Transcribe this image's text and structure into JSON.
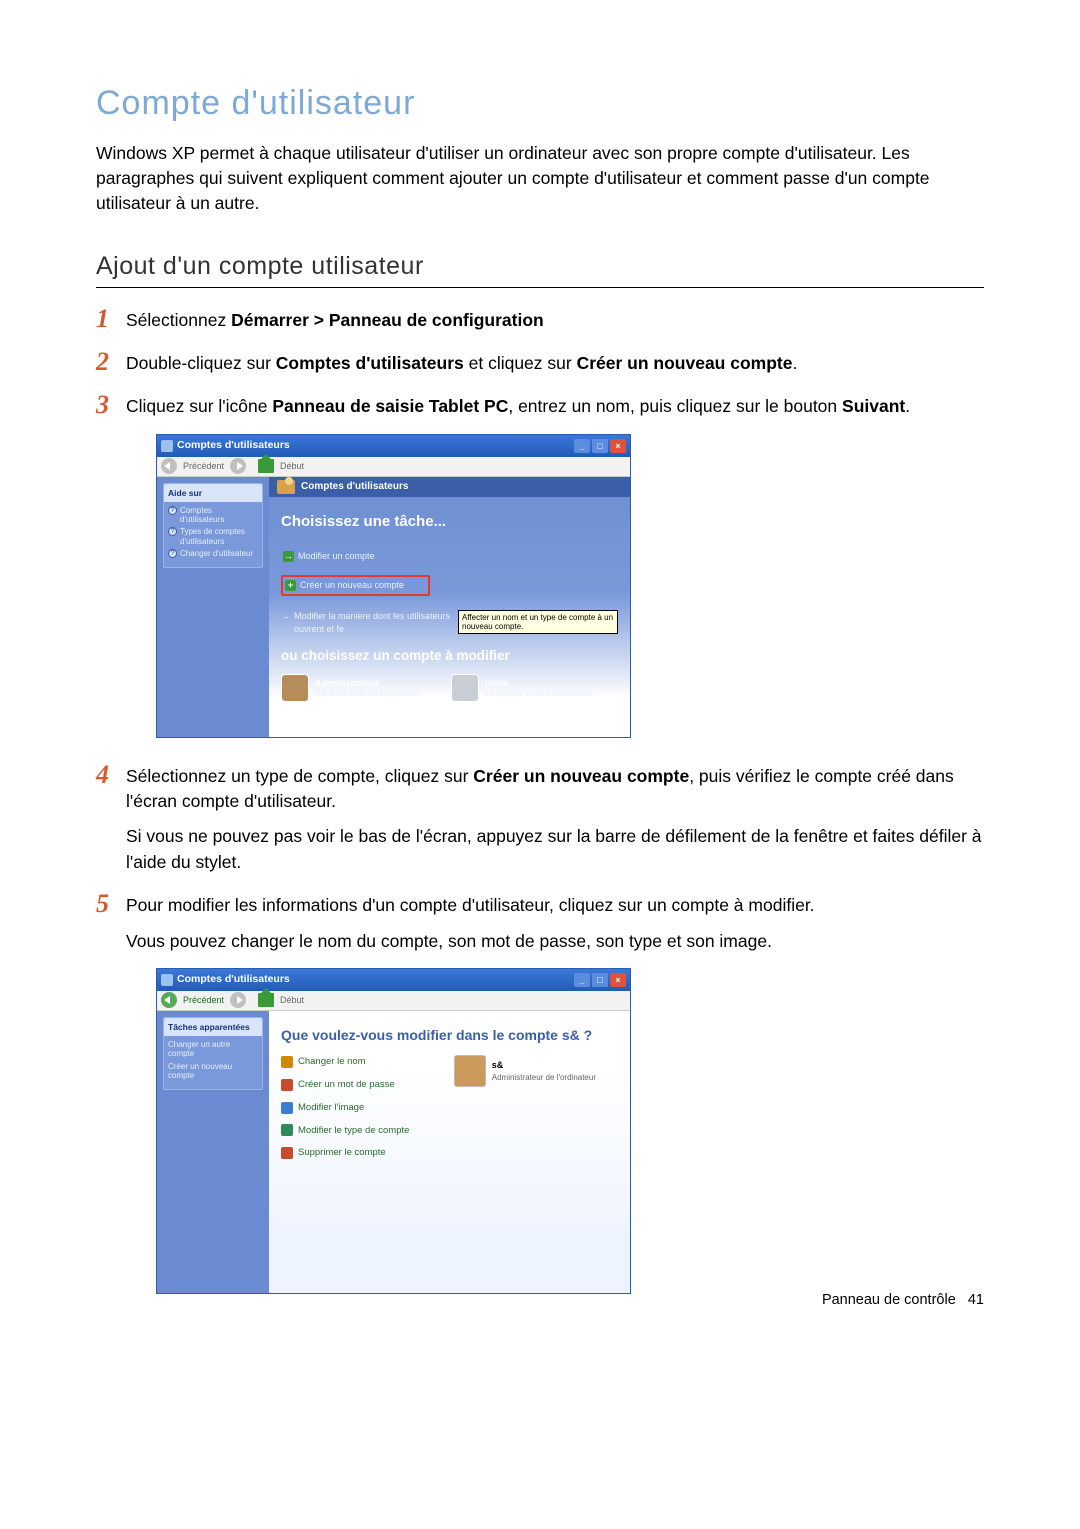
{
  "heading": "Compte d'utilisateur",
  "intro": "Windows XP permet à chaque utilisateur d'utiliser un ordinateur avec son propre compte d'utilisateur. Les paragraphes qui suivent expliquent comment ajouter un compte d'utilisateur et comment passe d'un compte utilisateur à un autre.",
  "subheading": "Ajout d'un compte utilisateur",
  "steps": {
    "s1": {
      "num": "1",
      "pre": "Sélectionnez ",
      "bold": "Démarrer > Panneau de configuration"
    },
    "s2": {
      "num": "2",
      "a": "Double-cliquez sur ",
      "b": "Comptes d'utilisateurs",
      "c": " et cliquez sur ",
      "d": "Créer un nouveau compte",
      "e": "."
    },
    "s3": {
      "num": "3",
      "a": "Cliquez sur l'icône ",
      "b": "Panneau de saisie Tablet PC",
      "c": ", entrez un nom, puis cliquez sur le bouton ",
      "d": "Suivant",
      "e": "."
    },
    "s4": {
      "num": "4",
      "a": "Sélectionnez un type de compte, cliquez sur ",
      "b": "Créer un nouveau compte",
      "c": ", puis vérifiez le compte créé dans l'écran compte d'utilisateur.",
      "p2": "Si vous ne pouvez pas voir le bas de l'écran, appuyez sur la barre de défilement de la fenêtre et faites défiler à l'aide du stylet."
    },
    "s5": {
      "num": "5",
      "p1": "Pour modifier les informations d'un compte d'utilisateur, cliquez sur un compte à modifier.",
      "p2": "Vous pouvez changer le nom du compte, son mot de passe, son type et son image."
    }
  },
  "win1": {
    "title": "Comptes d'utilisateurs",
    "toolbar": {
      "back": "Précédent",
      "home": "Début"
    },
    "side": {
      "panel_title": "Aide sur",
      "links": [
        "Comptes d'utilisateurs",
        "Types de comptes d'utilisateurs",
        "Changer d'utilisateur"
      ]
    },
    "banner": "Comptes d'utilisateurs",
    "task_title": "Choisissez une tâche...",
    "task_modify": "Modifier un compte",
    "task_create": "Créer un nouveau compte",
    "task_logon": "Modifier la manière dont les utilisateurs ouvrent et fe",
    "tooltip": "Affecter un nom et un type de compte à un nouveau compte.",
    "sub_title": "ou choisissez un compte à modifier",
    "acc_admin_name": "Administrateur",
    "acc_admin_sub": "Administrateur de l'ordinateur",
    "acc_guest_name": "Invité",
    "acc_guest_sub": "Le compte Invité est désactivé."
  },
  "win2": {
    "title": "Comptes d'utilisateurs",
    "toolbar": {
      "back": "Précédent",
      "home": "Début"
    },
    "side": {
      "panel_title": "Tâches apparentées",
      "links": [
        "Changer un autre compte",
        "Créer un nouveau compte"
      ]
    },
    "question": "Que voulez-vous modifier dans le compte s& ?",
    "opts": {
      "rename": "Changer le nom",
      "pass": "Créer un mot de passe",
      "img": "Modifier l'image",
      "type": "Modifier le type de compte",
      "del": "Supprimer le compte"
    },
    "user_name": "s&",
    "user_sub": "Administrateur de l'ordinateur"
  },
  "footer": {
    "section": "Panneau de contrôle",
    "page": "41"
  },
  "colors": {
    "heading": "#7ea9d6",
    "accent": "#d65a2e",
    "xp_blue": "#3b78d8",
    "xp_side": "#6a8bd1",
    "xp_banner": "#3a5fa8",
    "highlight": "#e03a2e"
  }
}
